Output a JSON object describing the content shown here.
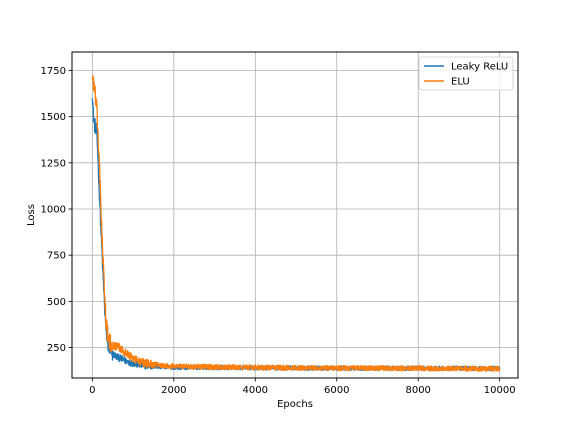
{
  "colors": {
    "leaky_relu": "#1f77b4",
    "elu": "#ff7f0e",
    "grid": "#b0b0b0",
    "axes": "#000000",
    "background": "#ffffff"
  },
  "chart_data": {
    "type": "line",
    "title": "",
    "xlabel": "Epochs",
    "ylabel": "Loss",
    "xlim": [
      -500,
      10450
    ],
    "ylim": [
      85,
      1850
    ],
    "xticks": [
      0,
      2000,
      4000,
      6000,
      8000,
      10000
    ],
    "yticks": [
      250,
      500,
      750,
      1000,
      1250,
      1500,
      1750
    ],
    "grid": true,
    "legend_position": "top-right",
    "series": [
      {
        "name": "Leaky ReLU",
        "color": "#1f77b4",
        "x": [
          0,
          20,
          50,
          80,
          100,
          130,
          160,
          200,
          230,
          260,
          300,
          330,
          360,
          400,
          450,
          500,
          600,
          700,
          800,
          1000,
          1200,
          1500,
          1800,
          2000,
          2500,
          3000,
          3500,
          4000,
          4500,
          5000,
          5500,
          6000,
          6500,
          7000,
          7500,
          8000,
          8500,
          9000,
          9500,
          10000
        ],
        "y": [
          1640,
          1520,
          1460,
          1440,
          1420,
          1320,
          1150,
          950,
          800,
          650,
          470,
          360,
          300,
          250,
          225,
          215,
          200,
          190,
          180,
          165,
          155,
          148,
          145,
          143,
          142,
          141,
          140,
          140,
          139,
          139,
          139,
          138,
          138,
          138,
          138,
          137,
          137,
          137,
          137,
          137
        ],
        "noise": 12
      },
      {
        "name": "ELU",
        "color": "#ff7f0e",
        "x": [
          0,
          20,
          50,
          80,
          100,
          130,
          160,
          200,
          230,
          260,
          300,
          330,
          360,
          400,
          450,
          500,
          600,
          700,
          800,
          1000,
          1200,
          1500,
          1800,
          2000,
          2500,
          3000,
          3500,
          4000,
          4500,
          5000,
          5500,
          6000,
          6500,
          7000,
          7500,
          8000,
          8500,
          9000,
          9500,
          10000
        ],
        "y": [
          1720,
          1700,
          1640,
          1600,
          1560,
          1450,
          1300,
          1080,
          900,
          730,
          540,
          420,
          340,
          290,
          270,
          262,
          255,
          245,
          225,
          190,
          170,
          158,
          152,
          150,
          147,
          145,
          143,
          142,
          141,
          140,
          139,
          139,
          138,
          138,
          137,
          137,
          136,
          136,
          135,
          135
        ],
        "noise": 14
      }
    ]
  }
}
